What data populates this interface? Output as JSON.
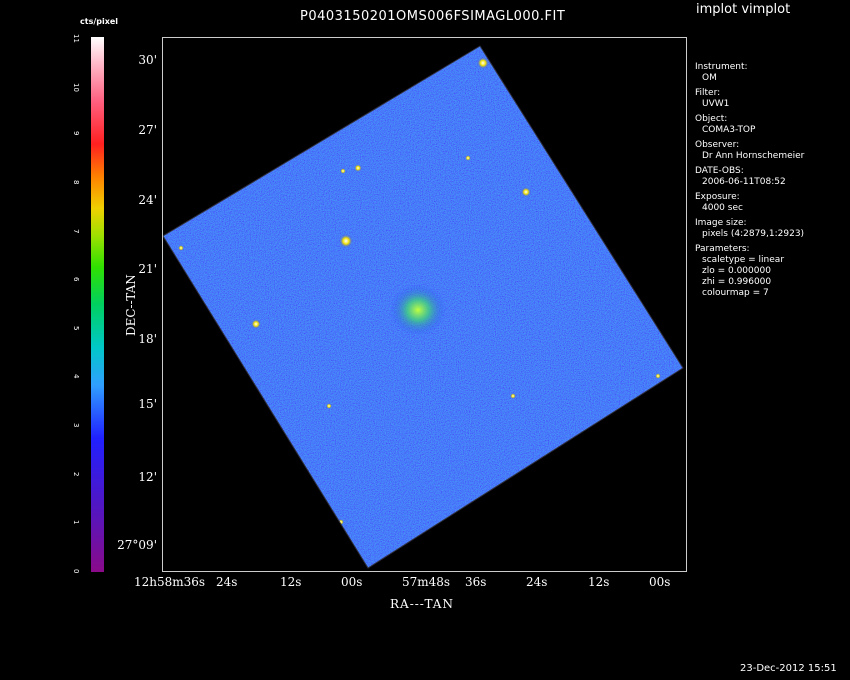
{
  "title": "P0403150201OMS006FSIMAGL000.FIT",
  "app": "implot vimplot",
  "colorbar": {
    "label": "cts/pixel",
    "ticks": [
      "0",
      "1",
      "2",
      "3",
      "4",
      "5",
      "6",
      "7",
      "8",
      "9",
      "10",
      "11"
    ]
  },
  "axes": {
    "ylabel": "DEC--TAN",
    "xlabel": "RA---TAN",
    "yticks": [
      "30'",
      "27'",
      "24'",
      "21'",
      "18'",
      "15'",
      "12'",
      "27°09'"
    ],
    "xticks": [
      "12h58m36s",
      "24s",
      "12s",
      "00s",
      "57m48s",
      "36s",
      "24s",
      "12s",
      "00s"
    ]
  },
  "info": [
    {
      "k": "Instrument:",
      "v": "OM"
    },
    {
      "k": "Filter:",
      "v": "UVW1"
    },
    {
      "k": "Object:",
      "v": "COMA3-TOP"
    },
    {
      "k": "Observer:",
      "v": "Dr Ann Hornschemeier"
    },
    {
      "k": "DATE-OBS:",
      "v": "2006-06-11T08:52"
    },
    {
      "k": "Exposure:",
      "v": "4000 sec"
    },
    {
      "k": "Image size:",
      "v": "pixels (4:2879,1:2923)"
    }
  ],
  "parameters": {
    "heading": "Parameters:",
    "scaletype": "scaletype = linear",
    "zlo": "zlo = 0.000000",
    "zhi": "zhi = 0.996000",
    "colourmap": "colourmap =    7"
  },
  "date": "23-Dec-2012 15:51"
}
